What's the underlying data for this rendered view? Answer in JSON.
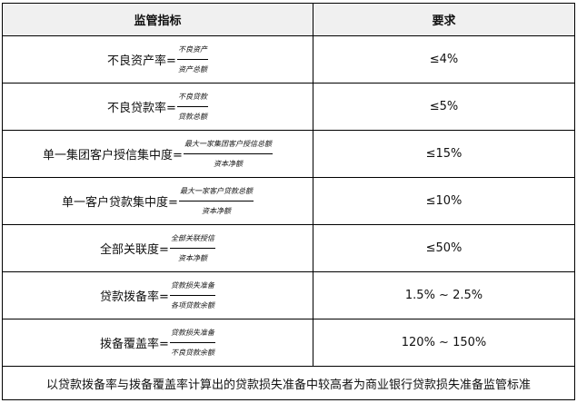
{
  "headers": [
    "监管指标",
    "要求"
  ],
  "rows": [
    {
      "name": "不良资产率=",
      "num": "不良资产",
      "den": "资产总额",
      "req": "≤4%"
    },
    {
      "name": "不良贷款率=",
      "num": "不良贷款",
      "den": "贷款总额",
      "req": "≤5%"
    },
    {
      "name": "单一集团客户授信集中度=",
      "num": "最大一家集团客户授信总额",
      "den": "资本净额",
      "req": "≤15%"
    },
    {
      "name": "单一客户贷款集中度=",
      "num": "最大一家客户贷款总额",
      "den": "资本净额",
      "req": "≤10%"
    },
    {
      "name": "全部关联度=",
      "num": "全部关联授信",
      "den": "资本净额",
      "req": "≤50%"
    },
    {
      "name": "贷款拨备率=",
      "num": "贷款损失准备",
      "den": "各项贷款余额",
      "req": "1.5% ~ 2.5%"
    },
    {
      "name": "拨备覆盖率=",
      "num": "贷款损失准备",
      "den": "不良贷款余额",
      "req": "120% ~ 150%"
    }
  ],
  "footer": "以贷款拨备率与拨备覆盖率计算出的贷款损失准备中较高者为商业银行贷款损失准备监管标准"
}
